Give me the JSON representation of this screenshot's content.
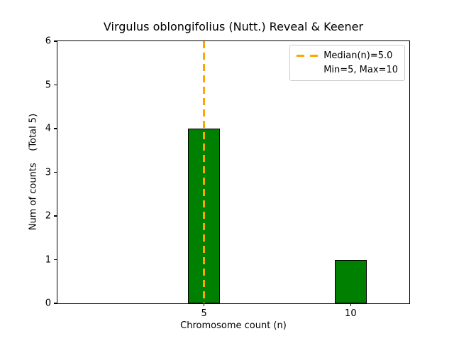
{
  "chart_data": {
    "type": "bar",
    "title": "Virgulus oblongifolius (Nutt.) Reveal & Keener",
    "xlabel": "Chromosome count (n)",
    "ylabel": "Num of counts    (Total 5)",
    "categories": [
      5,
      10
    ],
    "values": [
      4,
      1
    ],
    "bar_width_units": 1.1,
    "bar_color": "#008000",
    "bar_edge_color": "#000000",
    "xlim": [
      0,
      12
    ],
    "ylim": [
      0,
      6
    ],
    "xticks": [
      5,
      10
    ],
    "yticks": [
      0,
      1,
      2,
      3,
      4,
      5,
      6
    ],
    "grid": false,
    "median_line": {
      "x": 5,
      "color": "#FFA500",
      "style": "dashed",
      "label": "Median(n)=5.0"
    },
    "legend": {
      "position": "upper right",
      "entries": [
        {
          "handle": "orange-dashed-line",
          "label": "Median(n)=5.0"
        },
        {
          "handle": "none",
          "label": "Min=5, Max=10"
        }
      ]
    }
  }
}
